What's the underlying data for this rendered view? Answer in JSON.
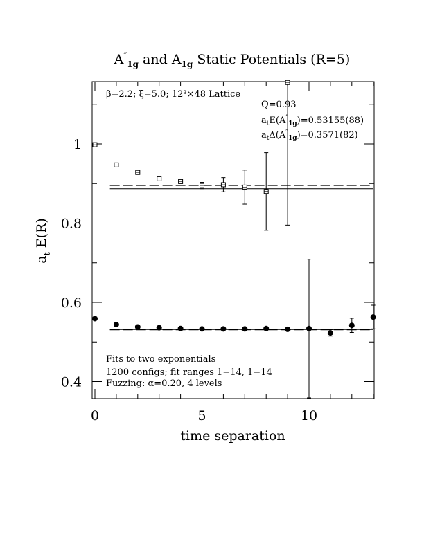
{
  "chart_data": {
    "type": "scatter",
    "title": {
      "prefix": "A",
      "prime": "″",
      "sub": "1g",
      "middle": " and A",
      "sub2": "1g",
      "suffix": " Static Potentials (R=5)"
    },
    "xlabel": "time separation",
    "ylabel": {
      "main": "a",
      "sub": "t",
      "rest": " E(R)"
    },
    "xlim": [
      0,
      13
    ],
    "ylim": [
      0.36,
      1.16
    ],
    "xticks": [
      0,
      5,
      10
    ],
    "xtick_labels": [
      "0",
      "5",
      "10"
    ],
    "yticks": [
      0.4,
      0.6,
      0.8,
      1.0
    ],
    "ytick_labels": [
      "0.4",
      "0.6",
      "0.8",
      "1"
    ],
    "series": [
      {
        "marker": "open-square",
        "x": [
          0,
          1,
          2,
          3,
          4,
          5,
          6,
          7,
          8,
          9
        ],
        "y": [
          0.998,
          0.947,
          0.928,
          0.912,
          0.905,
          0.895,
          0.897,
          0.891,
          0.88,
          1.155
        ],
        "err": [
          0.003,
          0.003,
          0.003,
          0.004,
          0.005,
          0.008,
          0.018,
          0.043,
          0.098,
          0.36
        ]
      },
      {
        "marker": "filled-circle",
        "x": [
          0,
          1,
          2,
          3,
          4,
          5,
          6,
          7,
          8,
          9,
          10,
          11,
          12,
          13
        ],
        "y": [
          0.559,
          0.544,
          0.538,
          0.536,
          0.534,
          0.533,
          0.533,
          0.533,
          0.534,
          0.532,
          0.534,
          0.523,
          0.542,
          0.563
        ],
        "err": [
          0.002,
          0.002,
          0.002,
          0.002,
          0.002,
          0.002,
          0.002,
          0.002,
          0.002,
          0.002,
          0.175,
          0.008,
          0.018,
          0.03
        ]
      }
    ],
    "fit_lines": [
      {
        "y": 0.8868,
        "band": 0.0082,
        "x": [
          0.7,
          13
        ]
      },
      {
        "y": 0.53155,
        "band": 0.00088,
        "x": [
          0.7,
          13
        ]
      }
    ],
    "annotations": {
      "lattice": "β=2.2; ξ=5.0; 12³×48 Lattice",
      "q": "Q=0.93",
      "energy": {
        "a": "a",
        "t": "t",
        "e": "E(A",
        "pp": "″",
        "sub": "1g",
        "val": ")=0.53155(88)"
      },
      "delta": {
        "a": "a",
        "t": "t",
        "d": "Δ(A",
        "pp": "″",
        "sub": "1g",
        "val": ")=0.3571(82)"
      },
      "fits_line1": "Fits to two exponentials",
      "fits_line2": "1200 configs; fit ranges 1−14, 1−14",
      "fits_line3": "Fuzzing: α=0.20, 4 levels"
    }
  }
}
